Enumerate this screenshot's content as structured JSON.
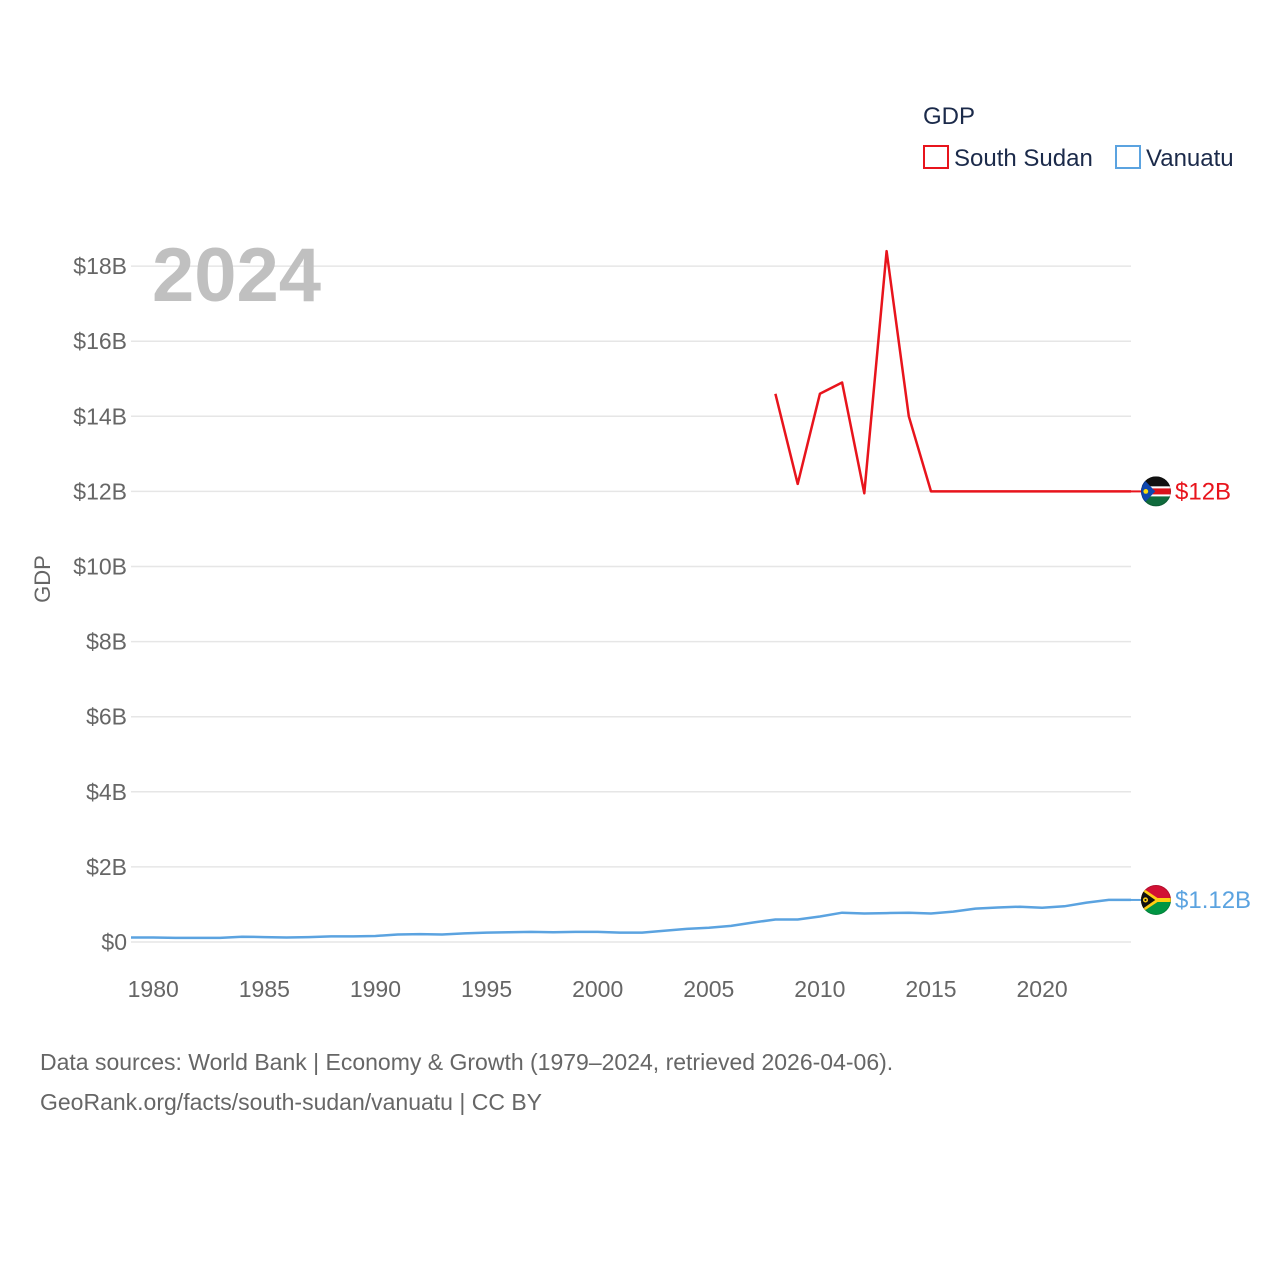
{
  "chart_data": {
    "type": "line",
    "year_label": "2024",
    "ylabel": "GDP",
    "xlabel": "",
    "ylim": [
      0,
      18.5
    ],
    "xlim": [
      1979,
      2024
    ],
    "y_ticks": [
      {
        "value": 0,
        "label": "$0"
      },
      {
        "value": 2,
        "label": "$2B"
      },
      {
        "value": 4,
        "label": "$4B"
      },
      {
        "value": 6,
        "label": "$6B"
      },
      {
        "value": 8,
        "label": "$8B"
      },
      {
        "value": 10,
        "label": "$10B"
      },
      {
        "value": 12,
        "label": "$12B"
      },
      {
        "value": 14,
        "label": "$14B"
      },
      {
        "value": 16,
        "label": "$16B"
      },
      {
        "value": 18,
        "label": "$18B"
      }
    ],
    "x_ticks": [
      {
        "value": 1980,
        "label": "1980"
      },
      {
        "value": 1985,
        "label": "1985"
      },
      {
        "value": 1990,
        "label": "1990"
      },
      {
        "value": 1995,
        "label": "1995"
      },
      {
        "value": 2000,
        "label": "2000"
      },
      {
        "value": 2005,
        "label": "2005"
      },
      {
        "value": 2010,
        "label": "2010"
      },
      {
        "value": 2015,
        "label": "2015"
      },
      {
        "value": 2020,
        "label": "2020"
      }
    ],
    "legend_title": "GDP",
    "series": [
      {
        "name": "South Sudan",
        "color": "#e8141c",
        "end_label": "$12B",
        "flag": "south-sudan",
        "points": [
          [
            2008,
            14.6
          ],
          [
            2009,
            12.2
          ],
          [
            2010,
            14.6
          ],
          [
            2011,
            14.9
          ],
          [
            2012,
            11.95
          ],
          [
            2013,
            18.4
          ],
          [
            2014,
            14.0
          ],
          [
            2015,
            12.0
          ],
          [
            2016,
            12.0
          ],
          [
            2017,
            12.0
          ],
          [
            2018,
            12.0
          ],
          [
            2019,
            12.0
          ],
          [
            2020,
            12.0
          ],
          [
            2021,
            12.0
          ],
          [
            2022,
            12.0
          ],
          [
            2023,
            12.0
          ],
          [
            2024,
            12.0
          ]
        ]
      },
      {
        "name": "Vanuatu",
        "color": "#5ba3e0",
        "end_label": "$1.12B",
        "flag": "vanuatu",
        "points": [
          [
            1979,
            0.12
          ],
          [
            1980,
            0.12
          ],
          [
            1981,
            0.11
          ],
          [
            1982,
            0.11
          ],
          [
            1983,
            0.11
          ],
          [
            1984,
            0.14
          ],
          [
            1985,
            0.13
          ],
          [
            1986,
            0.12
          ],
          [
            1987,
            0.13
          ],
          [
            1988,
            0.15
          ],
          [
            1989,
            0.15
          ],
          [
            1990,
            0.16
          ],
          [
            1991,
            0.2
          ],
          [
            1992,
            0.21
          ],
          [
            1993,
            0.2
          ],
          [
            1994,
            0.23
          ],
          [
            1995,
            0.25
          ],
          [
            1996,
            0.26
          ],
          [
            1997,
            0.27
          ],
          [
            1998,
            0.26
          ],
          [
            1999,
            0.27
          ],
          [
            2000,
            0.27
          ],
          [
            2001,
            0.25
          ],
          [
            2002,
            0.25
          ],
          [
            2003,
            0.3
          ],
          [
            2004,
            0.35
          ],
          [
            2005,
            0.38
          ],
          [
            2006,
            0.43
          ],
          [
            2007,
            0.52
          ],
          [
            2008,
            0.6
          ],
          [
            2009,
            0.6
          ],
          [
            2010,
            0.68
          ],
          [
            2011,
            0.78
          ],
          [
            2012,
            0.76
          ],
          [
            2013,
            0.77
          ],
          [
            2014,
            0.78
          ],
          [
            2015,
            0.76
          ],
          [
            2016,
            0.81
          ],
          [
            2017,
            0.89
          ],
          [
            2018,
            0.92
          ],
          [
            2019,
            0.94
          ],
          [
            2020,
            0.91
          ],
          [
            2021,
            0.95
          ],
          [
            2022,
            1.05
          ],
          [
            2023,
            1.12
          ],
          [
            2024,
            1.12
          ]
        ]
      }
    ]
  },
  "footer": {
    "line1": "Data sources: World Bank | Economy & Growth (1979–2024, retrieved 2026-04-06).",
    "line2": "GeoRank.org/facts/south-sudan/vanuatu | CC BY"
  }
}
